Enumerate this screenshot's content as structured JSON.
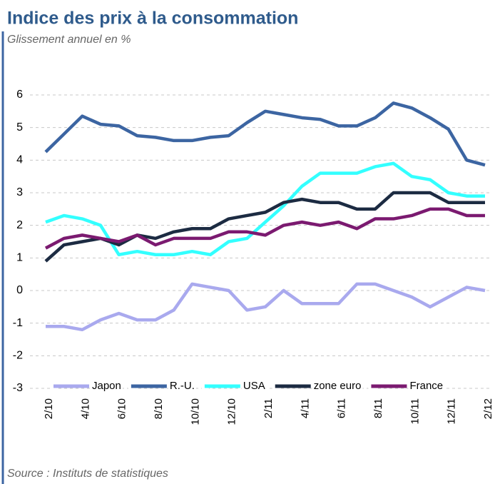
{
  "chart_data": {
    "type": "line",
    "title": "Indice des prix à la consommation",
    "subtitle": "Glissement annuel en %",
    "source": "Source :  Instituts de statistiques",
    "categories": [
      "2/10",
      null,
      "4/10",
      null,
      "6/10",
      null,
      "8/10",
      null,
      "10/10",
      null,
      "12/10",
      null,
      "2/11",
      null,
      "4/11",
      null,
      "6/11",
      null,
      "8/11",
      null,
      "10/11",
      null,
      "12/11",
      null,
      "2/12"
    ],
    "series": [
      {
        "name": "Japon",
        "color": "#a9a9ee",
        "values": [
          -1.1,
          -1.1,
          -1.2,
          -0.9,
          -0.7,
          -0.9,
          -0.9,
          -0.6,
          0.2,
          0.1,
          0.0,
          -0.6,
          -0.5,
          0.0,
          -0.4,
          -0.4,
          -0.4,
          0.2,
          0.2,
          0.0,
          -0.2,
          -0.5,
          -0.2,
          0.1,
          0.0
        ]
      },
      {
        "name": "R.-U.",
        "color": "#3c65a2",
        "values": [
          4.25,
          4.8,
          5.35,
          5.1,
          5.05,
          4.75,
          4.7,
          4.6,
          4.6,
          4.7,
          4.75,
          5.15,
          5.5,
          5.4,
          5.3,
          5.25,
          5.05,
          5.05,
          5.3,
          5.75,
          5.6,
          5.3,
          4.95,
          4.0,
          3.85
        ]
      },
      {
        "name": "USA",
        "color": "#33ffff",
        "values": [
          2.1,
          2.3,
          2.2,
          2.0,
          1.1,
          1.2,
          1.1,
          1.1,
          1.2,
          1.1,
          1.5,
          1.6,
          2.1,
          2.6,
          3.2,
          3.6,
          3.6,
          3.6,
          3.8,
          3.9,
          3.5,
          3.4,
          3.0,
          2.9,
          2.9
        ]
      },
      {
        "name": "zone euro",
        "color": "#1c2b42",
        "values": [
          0.9,
          1.4,
          1.5,
          1.6,
          1.4,
          1.7,
          1.6,
          1.8,
          1.9,
          1.9,
          2.2,
          2.3,
          2.4,
          2.7,
          2.8,
          2.7,
          2.7,
          2.5,
          2.5,
          3.0,
          3.0,
          3.0,
          2.7,
          2.7,
          2.7
        ]
      },
      {
        "name": "France",
        "color": "#7b1a70",
        "values": [
          1.3,
          1.6,
          1.7,
          1.6,
          1.5,
          1.7,
          1.4,
          1.6,
          1.6,
          1.6,
          1.8,
          1.8,
          1.7,
          2.0,
          2.1,
          2.0,
          2.1,
          1.9,
          2.2,
          2.2,
          2.3,
          2.5,
          2.5,
          2.3,
          2.3
        ]
      }
    ],
    "ylim": [
      -3,
      6
    ],
    "yticks": [
      -3,
      -2,
      -1,
      0,
      1,
      2,
      3,
      4,
      5,
      6
    ],
    "grid": true,
    "legend": "bottom"
  }
}
